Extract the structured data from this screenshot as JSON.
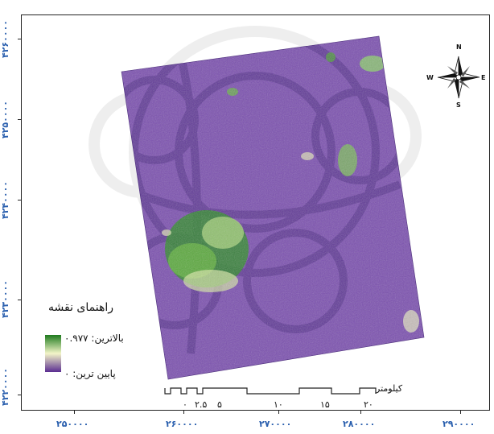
{
  "legend": {
    "title": "راهنمای نقشه",
    "high_label": "بالاترین: ۰.۹۷۷",
    "low_label": "پایین ترین: ۰",
    "colors": {
      "high": "#1e7a1e",
      "mid": "#f3f5c8",
      "low": "#5a2d91"
    }
  },
  "scalebar": {
    "unit": "کیلومتر",
    "labels": [
      "۰",
      "۲.۵",
      "۵",
      "۱۰",
      "۱۵",
      "۲۰"
    ]
  },
  "compass": {
    "n": "N",
    "s": "S",
    "e": "E",
    "w": "W"
  },
  "axes": {
    "y_ticks": [
      "۴۲۶۰۰۰۰",
      "۴۲۵۰۰۰۰",
      "۴۲۴۰۰۰۰",
      "۴۲۳۰۰۰۰",
      "۴۲۲۰۰۰۰"
    ],
    "x_ticks": [
      "۲۵۰۰۰۰",
      "۲۶۰۰۰۰",
      "۲۷۰۰۰۰",
      "۲۸۰۰۰۰",
      "۲۹۰۰۰۰"
    ]
  }
}
